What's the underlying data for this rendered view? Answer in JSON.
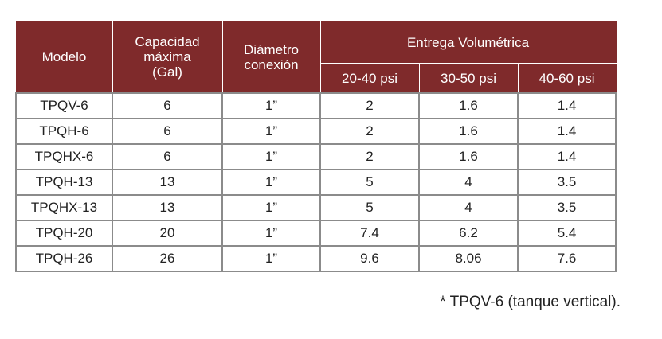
{
  "table": {
    "headers": {
      "model": "Modelo",
      "capacity": [
        "Capacidad",
        "máxima",
        "(Gal)"
      ],
      "diameter": [
        "Diámetro",
        "conexión"
      ],
      "delivery": "Entrega Volumétrica",
      "pressure_ranges": [
        "20-40 psi",
        "30-50 psi",
        "40-60 psi"
      ]
    },
    "rows": [
      [
        "TPQV-6",
        "6",
        "1”",
        "2",
        "1.6",
        "1.4"
      ],
      [
        "TPQH-6",
        "6",
        "1”",
        "2",
        "1.6",
        "1.4"
      ],
      [
        "TPQHX-6",
        "6",
        "1”",
        "2",
        "1.6",
        "1.4"
      ],
      [
        "TPQH-13",
        "13",
        "1”",
        "5",
        "4",
        "3.5"
      ],
      [
        "TPQHX-13",
        "13",
        "1”",
        "5",
        "4",
        "3.5"
      ],
      [
        "TPQH-20",
        "20",
        "1”",
        "7.4",
        "6.2",
        "5.4"
      ],
      [
        "TPQH-26",
        "26",
        "1”",
        "9.6",
        "8.06",
        "7.6"
      ]
    ]
  },
  "footnote": "* TPQV-6 (tanque vertical).",
  "colors": {
    "header_bg": "#7f2a2b",
    "header_text": "#ffffff",
    "grid": "#8b8b8b"
  }
}
